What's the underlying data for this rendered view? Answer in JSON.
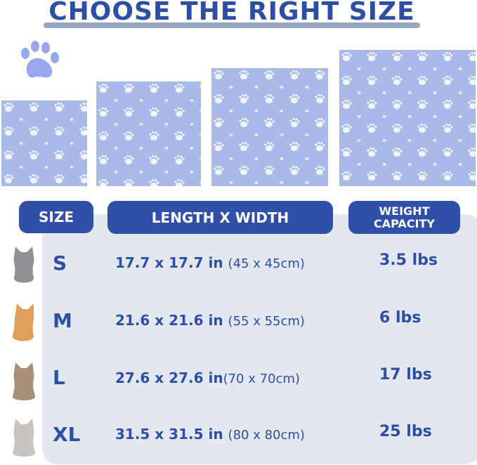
{
  "title": "CHOOSE THE RIGHT SIZE",
  "headers": {
    "size": "SIZE",
    "dimensions": "LENGTH X WIDTH",
    "weight_line1": "WEIGHT",
    "weight_line2": "CAPACITY"
  },
  "rows": [
    {
      "size": "S",
      "inches": "17.7 x 17.7 in",
      "cm": "(45 x 45cm)",
      "weight": "3.5 lbs"
    },
    {
      "size": "M",
      "inches": "21.6 x 21.6 in",
      "cm": "(55 x 55cm)",
      "weight": "6 lbs"
    },
    {
      "size": "L",
      "inches": "27.6 x 27.6 in",
      "cm": "(70 x 70cm)",
      "weight": "17 lbs"
    },
    {
      "size": "XL",
      "inches": "31.5 x 31.5 in",
      "cm": "(80 x 80cm)",
      "weight": "25 lbs"
    }
  ],
  "colors": {
    "accent": "#2f4fa8",
    "pad": "#a9b9e8",
    "panel": "#e3e7ef",
    "paw": "#97a6ee"
  },
  "icons": [
    "paw-icon",
    "cat-photo"
  ]
}
